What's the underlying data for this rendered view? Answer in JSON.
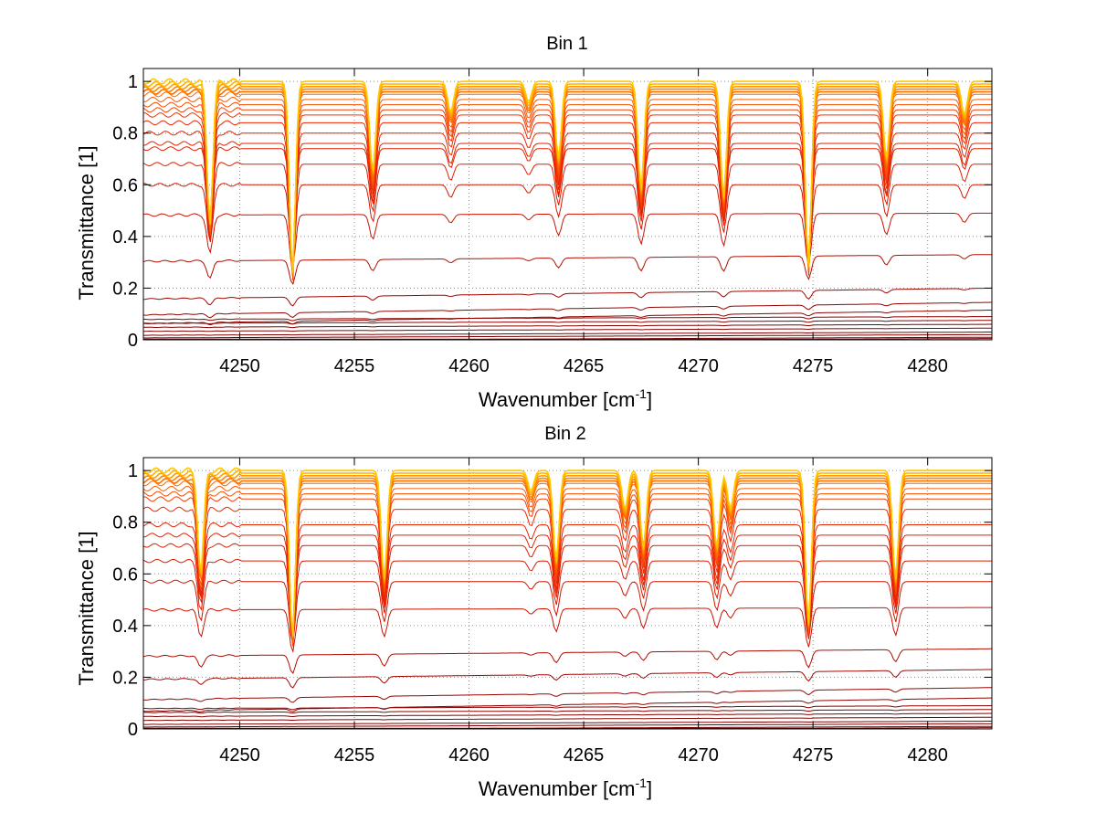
{
  "chart_data": [
    {
      "type": "line",
      "title": "Bin 1",
      "xlabel": "Wavenumber [cm",
      "xlabel_sup": "-1",
      "xlabel_end": "]",
      "ylabel": "Transmittance [1]",
      "xlim": [
        4245.8,
        4282.8
      ],
      "ylim": [
        0,
        1.05
      ],
      "grid": true,
      "xticks": [
        4250,
        4255,
        4260,
        4265,
        4270,
        4275,
        4280
      ],
      "yticks": [
        0,
        0.2,
        0.4,
        0.6,
        0.8,
        1
      ],
      "xtick_labels": [
        "4250",
        "4255",
        "4260",
        "4265",
        "4270",
        "4275",
        "4280"
      ],
      "ytick_labels": [
        "0",
        "0.2",
        "0.4",
        "0.6",
        "0.8",
        "1"
      ],
      "series_baselines": [
        0.005,
        0.01,
        0.02,
        0.03,
        0.045,
        0.06,
        0.075,
        0.09,
        0.115,
        0.145,
        0.2,
        0.33,
        0.49,
        0.6,
        0.68,
        0.74,
        0.76,
        0.8,
        0.84,
        0.87,
        0.89,
        0.91,
        0.93,
        0.95,
        0.96,
        0.97,
        0.98,
        0.99,
        1.0
      ],
      "absorption_lines": [
        {
          "center": 4248.7,
          "depth": 0.55
        },
        {
          "center": 4252.3,
          "depth": 0.75
        },
        {
          "center": 4255.8,
          "depth": 0.35
        },
        {
          "center": 4259.2,
          "depth": 0.12
        },
        {
          "center": 4262.6,
          "depth": 0.08
        },
        {
          "center": 4263.9,
          "depth": 0.3
        },
        {
          "center": 4267.5,
          "depth": 0.42
        },
        {
          "center": 4271.1,
          "depth": 0.45
        },
        {
          "center": 4274.8,
          "depth": 0.72
        },
        {
          "center": 4278.2,
          "depth": 0.3
        },
        {
          "center": 4281.6,
          "depth": 0.13
        }
      ]
    },
    {
      "type": "line",
      "title": "Bin 2",
      "xlabel": "Wavenumber [cm",
      "xlabel_sup": "-1",
      "xlabel_end": "]",
      "ylabel": "Transmittance [1]",
      "xlim": [
        4245.8,
        4282.8
      ],
      "ylim": [
        0,
        1.05
      ],
      "grid": true,
      "xticks": [
        4250,
        4255,
        4260,
        4265,
        4270,
        4275,
        4280
      ],
      "yticks": [
        0,
        0.2,
        0.4,
        0.6,
        0.8,
        1
      ],
      "xtick_labels": [
        "4250",
        "4255",
        "4260",
        "4265",
        "4270",
        "4275",
        "4280"
      ],
      "ytick_labels": [
        "0",
        "0.2",
        "0.4",
        "0.6",
        "0.8",
        "1"
      ],
      "series_baselines": [
        0.005,
        0.01,
        0.02,
        0.03,
        0.045,
        0.06,
        0.075,
        0.09,
        0.12,
        0.16,
        0.23,
        0.31,
        0.47,
        0.57,
        0.65,
        0.71,
        0.75,
        0.79,
        0.85,
        0.89,
        0.91,
        0.93,
        0.95,
        0.96,
        0.97,
        0.98,
        0.99,
        1.0
      ],
      "absorption_lines": [
        {
          "center": 4248.3,
          "depth": 0.4
        },
        {
          "center": 4252.3,
          "depth": 0.65
        },
        {
          "center": 4256.3,
          "depth": 0.42
        },
        {
          "center": 4262.7,
          "depth": 0.08
        },
        {
          "center": 4263.8,
          "depth": 0.35
        },
        {
          "center": 4266.8,
          "depth": 0.15
        },
        {
          "center": 4267.6,
          "depth": 0.3
        },
        {
          "center": 4270.8,
          "depth": 0.3
        },
        {
          "center": 4271.4,
          "depth": 0.15
        },
        {
          "center": 4274.8,
          "depth": 0.6
        },
        {
          "center": 4278.6,
          "depth": 0.42
        }
      ]
    }
  ]
}
